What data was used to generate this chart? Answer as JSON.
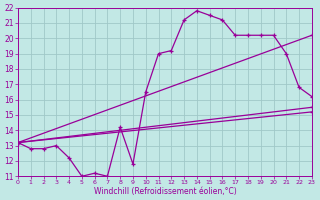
{
  "xlabel": "Windchill (Refroidissement éolien,°C)",
  "background_color": "#c2e8e5",
  "grid_color": "#a0c8c8",
  "line_color": "#990099",
  "xlim": [
    0,
    23
  ],
  "ylim": [
    11,
    22
  ],
  "xtick_labels": [
    "0",
    "1",
    "2",
    "3",
    "4",
    "5",
    "6",
    "7",
    "8",
    "9",
    "10",
    "11",
    "12",
    "13",
    "14",
    "15",
    "16",
    "17",
    "18",
    "19",
    "20",
    "21",
    "22",
    "23"
  ],
  "ytick_labels": [
    "11",
    "12",
    "13",
    "14",
    "15",
    "16",
    "17",
    "18",
    "19",
    "20",
    "21",
    "22"
  ],
  "line1_x": [
    0,
    1,
    2,
    3,
    4,
    5,
    6,
    7,
    8,
    9,
    10,
    11,
    12,
    13,
    14,
    15,
    16,
    17,
    18,
    19,
    20,
    21,
    22,
    23
  ],
  "line1_y": [
    13.2,
    12.8,
    12.8,
    13.0,
    12.2,
    11.0,
    11.2,
    11.0,
    14.2,
    11.8,
    16.5,
    19.0,
    19.2,
    21.2,
    21.8,
    21.5,
    21.2,
    20.2,
    20.2,
    20.2,
    20.2,
    19.0,
    16.8,
    16.2
  ],
  "line2_x": [
    0,
    23
  ],
  "line2_y": [
    13.2,
    20.2
  ],
  "line3_x": [
    0,
    23
  ],
  "line3_y": [
    13.2,
    15.5
  ],
  "line4_x": [
    0,
    23
  ],
  "line4_y": [
    13.2,
    15.2
  ]
}
